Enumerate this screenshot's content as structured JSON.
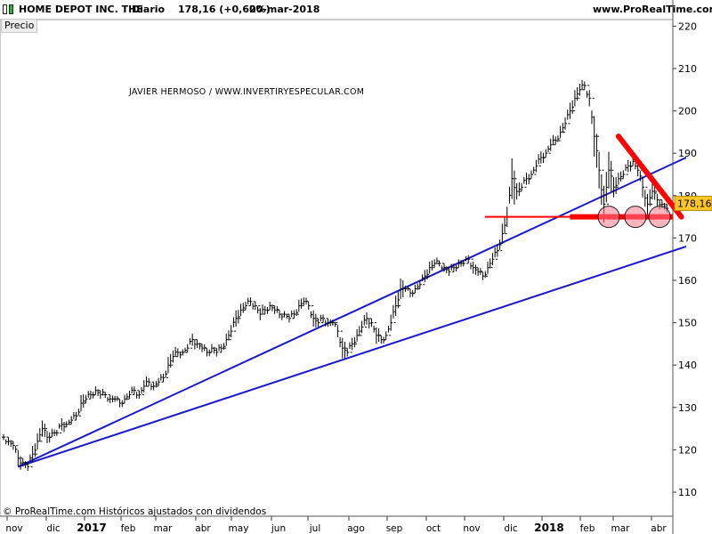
{
  "header": {
    "title": "HOME DEPOT INC. THE",
    "period": "Diario",
    "quote": "178,16 (+0,60%)",
    "date": "20-mar-2018",
    "site": "www.ProRealTime.com"
  },
  "panel_label": "Precio",
  "watermark": "JAVIER HERMOSO / WWW.INVERTIRYESPECULAR.COM",
  "footer": "© ProRealTime.com  Históricos ajustados con dividendos",
  "colors": {
    "trendline": "#1a1acc",
    "annotation": "#ff0000",
    "price_bars": "#000000",
    "last_price_bg": "#ffc726"
  },
  "chart_data": {
    "type": "line",
    "series": [
      {
        "values": [
          [
            0,
            123
          ],
          [
            2,
            122
          ],
          [
            4,
            121
          ],
          [
            6,
            118
          ],
          [
            8,
            117
          ],
          [
            10,
            116
          ],
          [
            12,
            119
          ],
          [
            14,
            122
          ],
          [
            16,
            125
          ],
          [
            18,
            123
          ],
          [
            20,
            124
          ],
          [
            22,
            124
          ],
          [
            24,
            126
          ],
          [
            26,
            126
          ],
          [
            28,
            127
          ],
          [
            30,
            128
          ],
          [
            32,
            131
          ],
          [
            34,
            132
          ],
          [
            36,
            133
          ],
          [
            38,
            134
          ],
          [
            40,
            133
          ],
          [
            42,
            133
          ],
          [
            44,
            132
          ],
          [
            46,
            132
          ],
          [
            48,
            131
          ],
          [
            50,
            132
          ],
          [
            52,
            133
          ],
          [
            54,
            134
          ],
          [
            56,
            133
          ],
          [
            58,
            135
          ],
          [
            60,
            136
          ],
          [
            62,
            135
          ],
          [
            64,
            136
          ],
          [
            66,
            137
          ],
          [
            68,
            140
          ],
          [
            70,
            142
          ],
          [
            72,
            143
          ],
          [
            74,
            143
          ],
          [
            76,
            144
          ],
          [
            78,
            146
          ],
          [
            80,
            145
          ],
          [
            82,
            144
          ],
          [
            84,
            143
          ],
          [
            86,
            144
          ],
          [
            88,
            143
          ],
          [
            90,
            144
          ],
          [
            92,
            146
          ],
          [
            94,
            148
          ],
          [
            96,
            151
          ],
          [
            98,
            153
          ],
          [
            100,
            154
          ],
          [
            102,
            155
          ],
          [
            104,
            154
          ],
          [
            106,
            152
          ],
          [
            108,
            153
          ],
          [
            110,
            154
          ],
          [
            112,
            153
          ],
          [
            114,
            152
          ],
          [
            116,
            152
          ],
          [
            118,
            151
          ],
          [
            120,
            152
          ],
          [
            122,
            154
          ],
          [
            124,
            155
          ],
          [
            126,
            154
          ],
          [
            128,
            151
          ],
          [
            130,
            150
          ],
          [
            132,
            151
          ],
          [
            134,
            150
          ],
          [
            136,
            150
          ],
          [
            138,
            148
          ],
          [
            140,
            144
          ],
          [
            142,
            143
          ],
          [
            144,
            145
          ],
          [
            146,
            147
          ],
          [
            148,
            149
          ],
          [
            150,
            151
          ],
          [
            152,
            150
          ],
          [
            154,
            147
          ],
          [
            156,
            146
          ],
          [
            158,
            147
          ],
          [
            160,
            150
          ],
          [
            162,
            154
          ],
          [
            164,
            158
          ],
          [
            166,
            158
          ],
          [
            168,
            157
          ],
          [
            170,
            158
          ],
          [
            172,
            159
          ],
          [
            174,
            161
          ],
          [
            176,
            163
          ],
          [
            178,
            164
          ],
          [
            180,
            164
          ],
          [
            182,
            163
          ],
          [
            184,
            162
          ],
          [
            186,
            163
          ],
          [
            188,
            164
          ],
          [
            190,
            164
          ],
          [
            192,
            165
          ],
          [
            194,
            163
          ],
          [
            196,
            162
          ],
          [
            198,
            161
          ],
          [
            200,
            163
          ],
          [
            202,
            165
          ],
          [
            204,
            167
          ],
          [
            206,
            171
          ],
          [
            208,
            175
          ],
          [
            210,
            184
          ],
          [
            212,
            181
          ],
          [
            214,
            182
          ],
          [
            216,
            184
          ],
          [
            218,
            185
          ],
          [
            220,
            187
          ],
          [
            222,
            189
          ],
          [
            224,
            190
          ],
          [
            226,
            192
          ],
          [
            228,
            193
          ],
          [
            230,
            195
          ],
          [
            232,
            197
          ],
          [
            234,
            200
          ],
          [
            236,
            203
          ],
          [
            238,
            205
          ],
          [
            240,
            206
          ],
          [
            242,
            203
          ],
          [
            244,
            194
          ],
          [
            246,
            186
          ],
          [
            248,
            178
          ],
          [
            250,
            186
          ],
          [
            252,
            182
          ],
          [
            254,
            184
          ],
          [
            256,
            185
          ],
          [
            258,
            187
          ],
          [
            260,
            188
          ],
          [
            262,
            186
          ],
          [
            264,
            182
          ],
          [
            266,
            178
          ],
          [
            268,
            181
          ],
          [
            270,
            179
          ],
          [
            272,
            178
          ],
          [
            274,
            177
          ]
        ]
      }
    ],
    "trendlines": [
      {
        "from": [
          6,
          116
        ],
        "to": [
          282,
          189
        ]
      },
      {
        "from": [
          6,
          116
        ],
        "to": [
          282,
          168
        ]
      }
    ],
    "annotations": {
      "support_level": 175,
      "circles": [
        [
          250,
          175
        ],
        [
          261,
          175
        ],
        [
          271,
          175
        ]
      ],
      "triangle": {
        "top": [
          254,
          194
        ],
        "apex": [
          280,
          175
        ],
        "base_start": [
          234,
          175
        ]
      }
    },
    "xlabel": "",
    "ylabel": "",
    "y_ticks": [
      110,
      120,
      130,
      140,
      150,
      160,
      170,
      180,
      190,
      200,
      210,
      220
    ],
    "x_ticks": [
      "nov",
      "dic",
      "2017",
      "feb",
      "mar",
      "abr",
      "may",
      "jun",
      "jul",
      "ago",
      "sep",
      "oct",
      "nov",
      "dic",
      "2018",
      "feb",
      "mar",
      "abr"
    ],
    "last_price": "178,16",
    "ylim": [
      105,
      222
    ],
    "xlim": [
      0,
      282
    ],
    "grid": false
  }
}
